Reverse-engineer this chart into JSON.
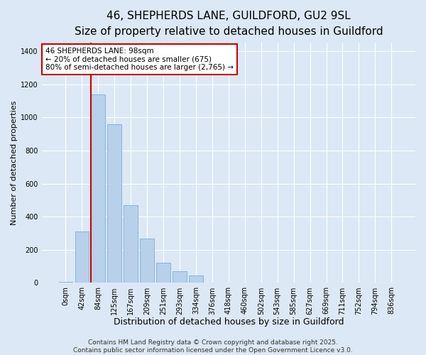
{
  "title_line1": "46, SHEPHERDS LANE, GUILDFORD, GU2 9SL",
  "title_line2": "Size of property relative to detached houses in Guildford",
  "xlabel": "Distribution of detached houses by size in Guildford",
  "ylabel": "Number of detached properties",
  "bar_color": "#b8d0ea",
  "bar_edge_color": "#7aafd4",
  "bg_color": "#dce8f5",
  "fig_bg_color": "#dce8f5",
  "grid_color": "#ffffff",
  "categories": [
    "0sqm",
    "42sqm",
    "84sqm",
    "125sqm",
    "167sqm",
    "209sqm",
    "251sqm",
    "293sqm",
    "334sqm",
    "376sqm",
    "418sqm",
    "460sqm",
    "502sqm",
    "543sqm",
    "585sqm",
    "627sqm",
    "669sqm",
    "711sqm",
    "752sqm",
    "794sqm",
    "836sqm"
  ],
  "values": [
    5,
    310,
    1140,
    960,
    470,
    270,
    120,
    70,
    45,
    0,
    0,
    0,
    0,
    0,
    0,
    0,
    0,
    0,
    0,
    0,
    0
  ],
  "ylim": [
    0,
    1450
  ],
  "yticks": [
    0,
    200,
    400,
    600,
    800,
    1000,
    1200,
    1400
  ],
  "red_line_x": 2.0,
  "red_line_color": "#cc0000",
  "annotation_text": "46 SHEPHERDS LANE: 98sqm\n← 20% of detached houses are smaller (675)\n80% of semi-detached houses are larger (2,765) →",
  "annotation_box_color": "#ffffff",
  "annotation_box_edge": "#cc0000",
  "footer_text": "Contains HM Land Registry data © Crown copyright and database right 2025.\nContains public sector information licensed under the Open Government Licence v3.0.",
  "title_fontsize": 11,
  "subtitle_fontsize": 10,
  "xlabel_fontsize": 9,
  "ylabel_fontsize": 8,
  "tick_fontsize": 7,
  "annotation_fontsize": 7.5,
  "footer_fontsize": 6.5
}
